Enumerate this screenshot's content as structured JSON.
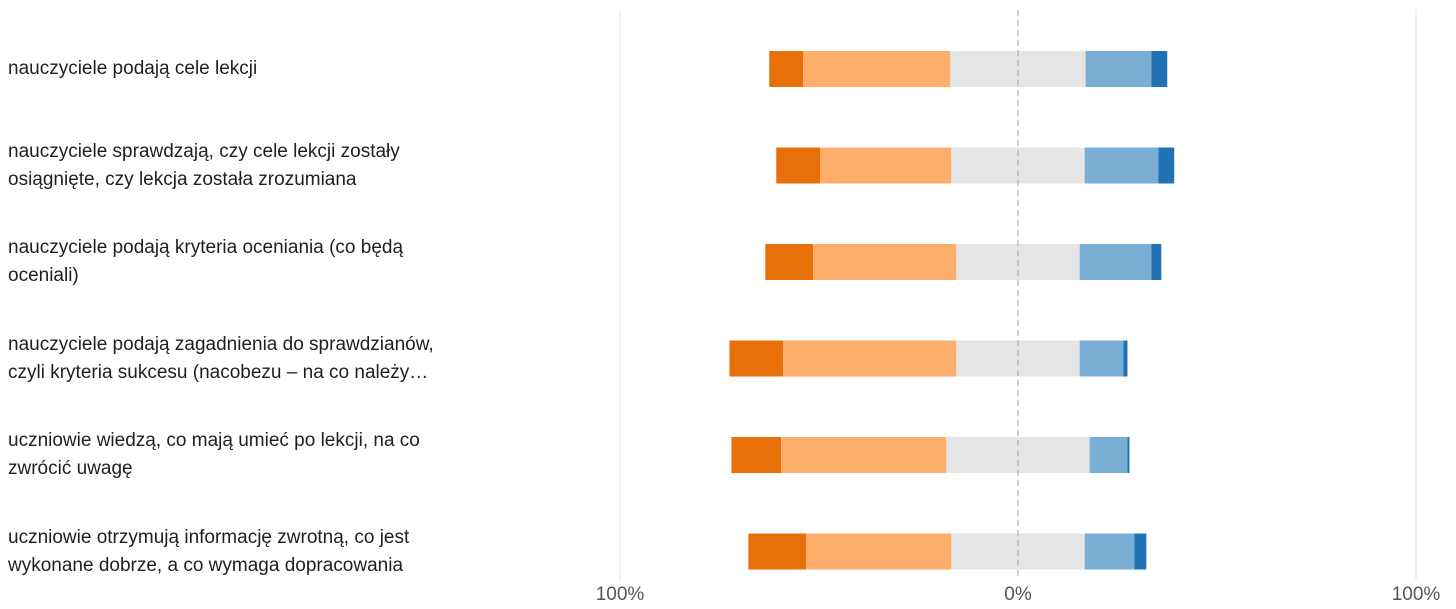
{
  "chart_data": {
    "type": "bar",
    "orientation": "horizontal",
    "stacked": "diverging",
    "categories": [
      "nauczyciele podają cele lekcji",
      "nauczyciele sprawdzają, czy cele lekcji zostały\nosiągnięte, czy lekcja została zrozumiana",
      "nauczyciele podają kryteria oceniania (co będą\noceniali)",
      "nauczyciele podają zagadnienia do sprawdzianów,\nczyli kryteria sukcesu (nacobezu – na co należy…",
      "uczniowie wiedzą, co mają umieć po lekcji, na co\nzwrócić uwagę",
      "uczniowie otrzymują informację zwrotną, co jest\nwykonane dobrze, a co wymaga dopracowania"
    ],
    "series": [
      {
        "color": "#e8700a",
        "values": [
          8.5,
          11,
          12,
          13.5,
          12.5,
          14.5
        ]
      },
      {
        "color": "#fdae6b",
        "values": [
          37,
          33,
          36,
          43.5,
          41.5,
          36.5
        ]
      },
      {
        "color": "#e5e5e5",
        "values": [
          34,
          33.5,
          31,
          31,
          36,
          33.5
        ]
      },
      {
        "color": "#7aadd4",
        "values": [
          16.5,
          18.5,
          18,
          11,
          9.5,
          12.5
        ]
      },
      {
        "color": "#2171b5",
        "values": [
          4,
          4,
          2.5,
          1,
          0.5,
          3
        ]
      }
    ],
    "neutral_center_series": 2,
    "xlim": [
      -100,
      100
    ],
    "xticks": [
      "100%",
      "0%",
      "100%"
    ],
    "grid": true,
    "center_line": "dashed",
    "legend": "none"
  }
}
